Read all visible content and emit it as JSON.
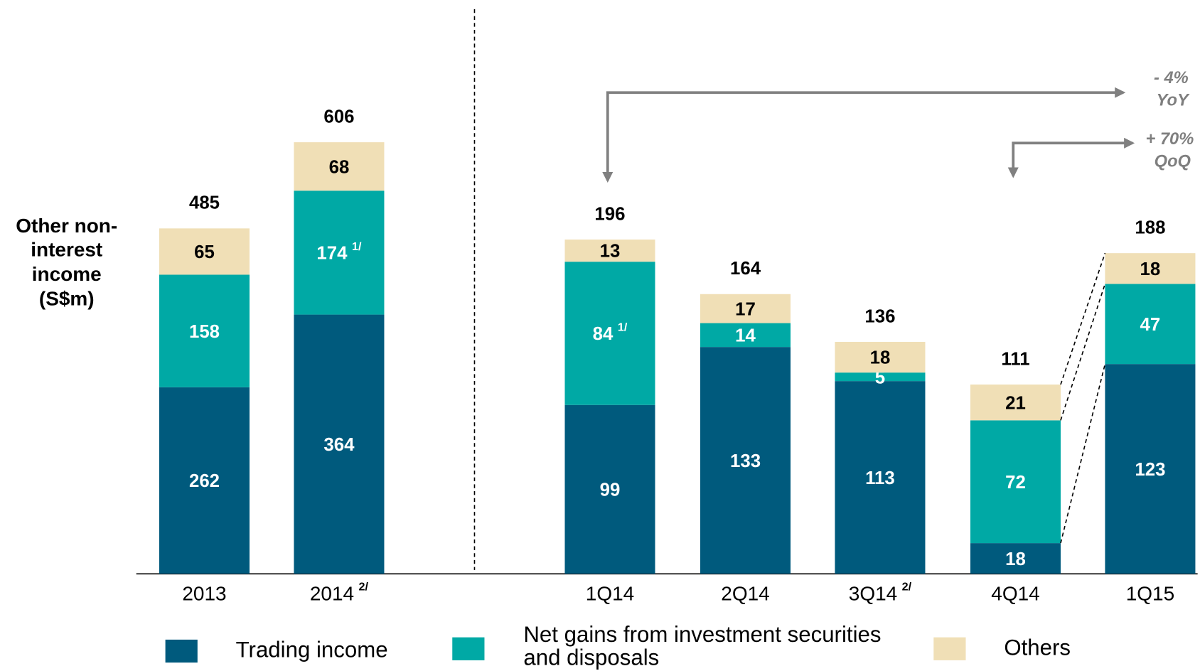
{
  "legend": [
    {
      "name": "Trading income",
      "color": "#005a7d"
    },
    {
      "name": "Net gains from investment securities and disposals",
      "color": "#00a9a5"
    },
    {
      "name": "Others",
      "color": "#f0dfb6"
    }
  ],
  "ylabel_lines": [
    "Other non-",
    "interest",
    "income",
    "(S$m)"
  ],
  "annotations": [
    [
      "- 4%",
      "YoY"
    ],
    [
      "+ 70%",
      "QoQ"
    ]
  ],
  "chart_data": [
    {
      "type": "stacked_bar",
      "categories": [
        "2013",
        "2014"
      ],
      "category_notes": [
        null,
        "2/"
      ],
      "series": [
        {
          "values": [
            262,
            364
          ],
          "notes": [
            null,
            null
          ]
        },
        {
          "values": [
            158,
            174
          ],
          "notes": [
            null,
            "1/"
          ]
        },
        {
          "values": [
            65,
            68
          ],
          "notes": [
            null,
            null
          ]
        }
      ],
      "totals": [
        485,
        606
      ],
      "ylim": [
        0,
        752
      ]
    },
    {
      "type": "stacked_bar",
      "categories": [
        "1Q14",
        "2Q14",
        "3Q14",
        "4Q14",
        "1Q15"
      ],
      "category_notes": [
        null,
        null,
        "2/",
        null,
        null
      ],
      "series": [
        {
          "values": [
            99,
            133,
            113,
            18,
            123
          ],
          "notes": [
            null,
            null,
            null,
            null,
            null
          ]
        },
        {
          "values": [
            84,
            14,
            5,
            72,
            47
          ],
          "notes": [
            "1/",
            null,
            null,
            null,
            null
          ]
        },
        {
          "values": [
            13,
            17,
            18,
            21,
            18
          ],
          "notes": [
            null,
            null,
            null,
            null,
            null
          ]
        }
      ],
      "totals": [
        196,
        164,
        136,
        111,
        188
      ],
      "ylim": [
        0,
        314
      ]
    }
  ]
}
